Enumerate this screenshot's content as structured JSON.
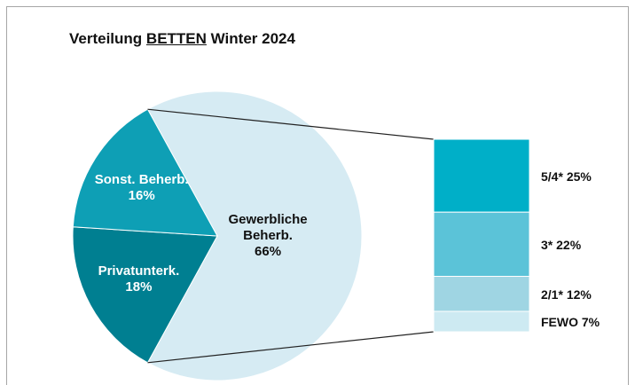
{
  "chart_data": {
    "type": "pie-of-bar",
    "title_parts": [
      "Verteilung",
      "BETTEN",
      "Winter 2024"
    ],
    "title_underline": 1,
    "pie": {
      "categories": [
        "Gewerbliche Beherb.",
        "Privatunterk.",
        "Sonst. Beherb."
      ],
      "values": [
        66,
        18,
        16
      ],
      "value_labels": [
        "66%",
        "18%",
        "16%"
      ],
      "colors": [
        "#d6ebf3",
        "#007f91",
        "#0e9fb5"
      ]
    },
    "bar": {
      "categories": [
        "5/4*",
        "3*",
        "2/1*",
        "FEWO"
      ],
      "values": [
        25,
        22,
        12,
        7
      ],
      "value_labels": [
        "25%",
        "22%",
        "12%",
        "7%"
      ],
      "colors": [
        "#00afc8",
        "#5bc3d8",
        "#9fd5e3",
        "#cdeaf2"
      ]
    }
  }
}
